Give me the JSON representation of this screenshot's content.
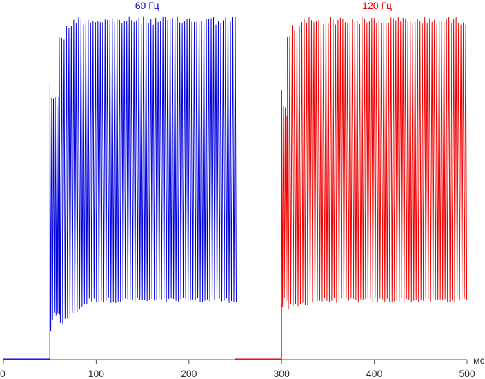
{
  "chart_data": {
    "type": "line",
    "x_unit": "мс",
    "xlim": [
      0,
      500
    ],
    "xticks": [
      0,
      100,
      200,
      300,
      400,
      500
    ],
    "grid": false,
    "series": [
      {
        "name": "60 Гц",
        "color": "#0000dd",
        "baseline_level": 0.0,
        "baseline_x": [
          0,
          50
        ],
        "step_x": 50,
        "burst_x": [
          50,
          60
        ],
        "burst_high": 0.8,
        "burst_low": 0.08,
        "burst_mid_high": 0.75,
        "burst_mid_low": 0.12,
        "pulse_x": [
          60,
          250
        ],
        "pulse_period_ms": 2.6,
        "pulse_high": 0.995,
        "pulse_high_dip": 0.97,
        "pulse_low": 0.17,
        "pulse_low_early": 0.1
      },
      {
        "name": "120 Гц",
        "color": "#ee0000",
        "baseline_level": 0.0,
        "baseline_x": [
          250,
          300
        ],
        "step_x": 300,
        "burst_x": [
          300,
          306
        ],
        "burst_high": 0.78,
        "burst_low": 0.15,
        "burst_mid_high": 0.72,
        "burst_mid_low": 0.17,
        "pulse_x": [
          306,
          500
        ],
        "pulse_period_ms": 2.6,
        "pulse_high": 0.995,
        "pulse_high_dip": 0.97,
        "pulse_low": 0.17,
        "pulse_low_early": 0.15
      }
    ]
  }
}
